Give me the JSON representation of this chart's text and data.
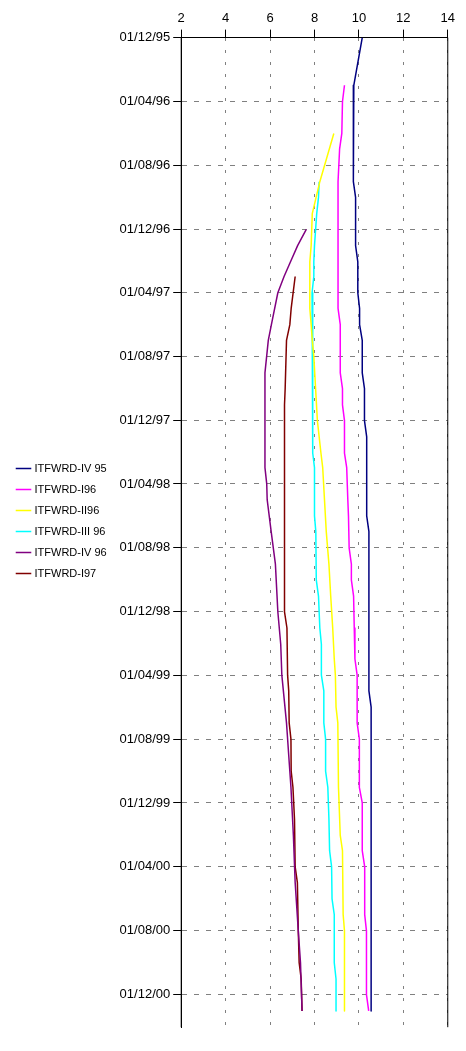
{
  "chart_data": {
    "type": "line",
    "orientation": "horizontal",
    "xlim": [
      2,
      14
    ],
    "xticks": [
      2,
      4,
      6,
      8,
      10,
      12,
      14
    ],
    "ylim": [
      "2001-02-01",
      "1995-12-01"
    ],
    "yticks": [
      {
        "value": "1995-12-01",
        "label": "01/12/95"
      },
      {
        "value": "1996-04-01",
        "label": "01/04/96"
      },
      {
        "value": "1996-08-01",
        "label": "01/08/96"
      },
      {
        "value": "1996-12-01",
        "label": "01/12/96"
      },
      {
        "value": "1997-04-01",
        "label": "01/04/97"
      },
      {
        "value": "1997-08-01",
        "label": "01/08/97"
      },
      {
        "value": "1997-12-01",
        "label": "01/12/97"
      },
      {
        "value": "1998-04-01",
        "label": "01/04/98"
      },
      {
        "value": "1998-08-01",
        "label": "01/08/98"
      },
      {
        "value": "1998-12-01",
        "label": "01/12/98"
      },
      {
        "value": "1999-04-01",
        "label": "01/04/99"
      },
      {
        "value": "1999-08-01",
        "label": "01/08/99"
      },
      {
        "value": "1999-12-01",
        "label": "01/12/99"
      },
      {
        "value": "2000-04-01",
        "label": "01/04/00"
      },
      {
        "value": "2000-08-01",
        "label": "01/08/00"
      },
      {
        "value": "2000-12-01",
        "label": "01/12/00"
      }
    ],
    "grid": true,
    "legend": "left",
    "marker": "none",
    "line_style": "solid",
    "series": [
      {
        "name": "ITFWRD-IV 95",
        "color": "#000080",
        "x": [
          "1995-12",
          "1996-03",
          "1996-09",
          "1996-10",
          "1997-01",
          "1997-02",
          "1997-04",
          "1997-05",
          "1997-06",
          "1997-07",
          "1997-09",
          "1997-10",
          "1997-12",
          "1998-01",
          "1998-06",
          "1998-07",
          "1999-05",
          "1999-06",
          "2001-01"
        ],
        "values": [
          10.15,
          9.77,
          9.75,
          9.85,
          9.85,
          9.95,
          9.95,
          10.03,
          10.03,
          10.15,
          10.15,
          10.25,
          10.25,
          10.35,
          10.35,
          10.45,
          10.45,
          10.55,
          10.55
        ]
      },
      {
        "name": "ITFWRD-I96",
        "color": "#ff00ff",
        "x": [
          "1996-03",
          "1996-04",
          "1996-06",
          "1996-07",
          "1996-09",
          "1997-05",
          "1997-06",
          "1997-09",
          "1997-10",
          "1997-11",
          "1997-12",
          "1998-02",
          "1998-03",
          "1998-05",
          "1998-06",
          "1998-08",
          "1998-09",
          "1998-10",
          "1998-11",
          "1999-01",
          "1999-03",
          "1999-04",
          "1999-07",
          "1999-08",
          "1999-11",
          "1999-12",
          "2000-03",
          "2000-04",
          "2000-07",
          "2000-08",
          "2000-12",
          "2001-01"
        ],
        "values": [
          9.35,
          9.26,
          9.23,
          9.13,
          9.06,
          9.06,
          9.16,
          9.16,
          9.26,
          9.26,
          9.35,
          9.35,
          9.45,
          9.5,
          9.53,
          9.56,
          9.66,
          9.66,
          9.76,
          9.79,
          9.82,
          9.92,
          9.92,
          10.02,
          10.02,
          10.15,
          10.15,
          10.26,
          10.26,
          10.34,
          10.34,
          10.44
        ]
      },
      {
        "name": "ITFWRD-II96",
        "color": "#ffff00",
        "x": [
          "1996-06",
          "1996-09",
          "1996-11",
          "1997-01",
          "1997-02",
          "1997-05",
          "1997-06",
          "1997-07",
          "1997-08",
          "1997-10",
          "1997-12",
          "1998-02",
          "1998-03",
          "1998-05",
          "1998-07",
          "1998-09",
          "1998-11",
          "1999-01",
          "1999-03",
          "1999-04",
          "1999-06",
          "1999-07",
          "1999-11",
          "2000-02",
          "2000-03",
          "2000-07",
          "2000-08",
          "2001-01"
        ],
        "values": [
          8.87,
          8.24,
          7.9,
          7.85,
          7.79,
          7.79,
          7.85,
          7.9,
          7.97,
          8.05,
          8.13,
          8.29,
          8.37,
          8.45,
          8.53,
          8.65,
          8.73,
          8.82,
          8.89,
          8.94,
          8.97,
          9.05,
          9.08,
          9.16,
          9.26,
          9.29,
          9.35,
          9.35
        ]
      },
      {
        "name": "ITFWRD-III 96",
        "color": "#00ffff",
        "x": [
          "1996-09",
          "1996-10",
          "1996-11",
          "1997-01",
          "1997-02",
          "1997-03",
          "1997-04",
          "1998-02",
          "1998-03",
          "1998-06",
          "1998-07",
          "1998-10",
          "1998-11",
          "1999-01",
          "1999-02",
          "1999-04",
          "1999-05",
          "1999-07",
          "1999-08",
          "1999-10",
          "1999-11",
          "2000-01",
          "2000-03",
          "2000-04",
          "2000-06",
          "2000-07",
          "2000-10",
          "2000-11",
          "2001-01"
        ],
        "values": [
          8.21,
          8.18,
          8.1,
          8.0,
          7.97,
          7.97,
          7.89,
          7.92,
          8.0,
          8.0,
          8.06,
          8.08,
          8.18,
          8.24,
          8.31,
          8.31,
          8.42,
          8.42,
          8.5,
          8.5,
          8.6,
          8.65,
          8.68,
          8.77,
          8.79,
          8.89,
          8.89,
          8.97,
          8.97
        ]
      },
      {
        "name": "ITFWRD-IV 96",
        "color": "#800080",
        "x": [
          "1996-12",
          "1997-01",
          "1997-02",
          "1997-03",
          "1997-04",
          "1997-06",
          "1997-07",
          "1997-09",
          "1998-03",
          "1998-04",
          "1998-05",
          "1998-07",
          "1998-09",
          "1998-12",
          "1999-02",
          "1999-04",
          "1999-07",
          "1999-09",
          "1999-11",
          "2000-02",
          "2000-05",
          "2000-08",
          "2000-10",
          "2001-01"
        ],
        "values": [
          7.63,
          7.24,
          6.92,
          6.63,
          6.35,
          6.06,
          5.92,
          5.77,
          5.77,
          5.85,
          5.87,
          6.05,
          6.24,
          6.35,
          6.48,
          6.53,
          6.74,
          6.84,
          6.94,
          7.05,
          7.13,
          7.27,
          7.37,
          7.44
        ]
      },
      {
        "name": "ITFWRD-I97",
        "color": "#800000",
        "x": [
          "1997-03",
          "1997-05",
          "1997-06",
          "1997-07",
          "1997-10",
          "1997-11",
          "1998-12",
          "1999-01",
          "1999-04",
          "1999-05",
          "1999-07",
          "1999-08",
          "1999-10",
          "1999-11",
          "2000-01",
          "2000-04",
          "2000-05",
          "2000-08",
          "2000-10",
          "2000-11",
          "2001-01"
        ],
        "values": [
          7.13,
          6.95,
          6.89,
          6.74,
          6.68,
          6.65,
          6.65,
          6.76,
          6.79,
          6.84,
          6.86,
          6.94,
          6.95,
          7.03,
          7.1,
          7.13,
          7.23,
          7.27,
          7.31,
          7.4,
          7.44
        ]
      }
    ]
  }
}
